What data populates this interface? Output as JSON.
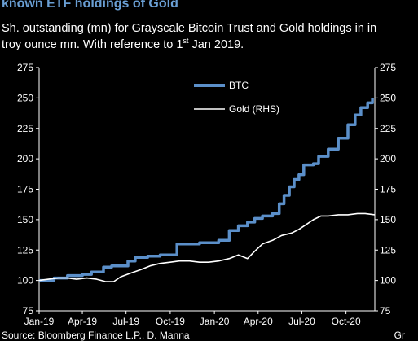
{
  "header": {
    "title": "known ETF holdings of Gold",
    "subtitle_line1": "Sh. outstanding (mn) for Grayscale Bitcoin Trust and Gold holdings in in",
    "subtitle_line2_pre": "troy ounce mn. With reference to 1",
    "subtitle_line2_sup": "st",
    "subtitle_line2_post": " Jan 2019."
  },
  "footer": {
    "source": "Source: Bloomberg Finance L.P., D. Manna",
    "right": "Gr"
  },
  "chart_data": {
    "type": "line",
    "x_ticks": [
      "Jan-19",
      "Apr-19",
      "Jul-19",
      "Oct-19",
      "Jan-20",
      "Apr-20",
      "Jul-20",
      "Oct-20"
    ],
    "x_range": [
      "2019-01-01",
      "2020-11-30"
    ],
    "y_left": {
      "ticks": [
        75,
        100,
        125,
        150,
        175,
        200,
        225,
        250,
        275
      ],
      "range": [
        75,
        275
      ]
    },
    "y_right": {
      "ticks": [
        75,
        100,
        125,
        150,
        175,
        200,
        225,
        250,
        275
      ],
      "range": [
        75,
        275
      ]
    },
    "legend": {
      "position": "top-center"
    },
    "series": [
      {
        "name": "BTC",
        "color": "#5b8fc9",
        "style": "step",
        "points": [
          [
            "2019-01-01",
            100
          ],
          [
            "2019-02-01",
            102
          ],
          [
            "2019-03-01",
            104
          ],
          [
            "2019-04-01",
            105
          ],
          [
            "2019-04-20",
            107
          ],
          [
            "2019-05-15",
            111
          ],
          [
            "2019-06-01",
            112
          ],
          [
            "2019-07-05",
            116
          ],
          [
            "2019-07-20",
            119
          ],
          [
            "2019-08-15",
            120
          ],
          [
            "2019-09-10",
            121
          ],
          [
            "2019-10-15",
            130
          ],
          [
            "2019-12-01",
            131
          ],
          [
            "2020-01-10",
            133
          ],
          [
            "2020-02-01",
            141
          ],
          [
            "2020-02-20",
            145
          ],
          [
            "2020-03-10",
            148
          ],
          [
            "2020-03-25",
            151
          ],
          [
            "2020-04-10",
            153
          ],
          [
            "2020-05-01",
            155
          ],
          [
            "2020-05-15",
            163
          ],
          [
            "2020-05-25",
            170
          ],
          [
            "2020-06-05",
            177
          ],
          [
            "2020-06-15",
            183
          ],
          [
            "2020-06-25",
            187
          ],
          [
            "2020-07-05",
            195
          ],
          [
            "2020-07-25",
            196
          ],
          [
            "2020-08-05",
            202
          ],
          [
            "2020-08-25",
            208
          ],
          [
            "2020-09-15",
            217
          ],
          [
            "2020-10-05",
            228
          ],
          [
            "2020-10-20",
            236
          ],
          [
            "2020-11-01",
            242
          ],
          [
            "2020-11-15",
            246
          ],
          [
            "2020-11-25",
            250
          ]
        ]
      },
      {
        "name": "Gold (RHS)",
        "color": "#ffffff",
        "style": "line",
        "points": [
          [
            "2019-01-01",
            100
          ],
          [
            "2019-01-20",
            101
          ],
          [
            "2019-02-10",
            102
          ],
          [
            "2019-03-01",
            102
          ],
          [
            "2019-03-20",
            101
          ],
          [
            "2019-04-10",
            102
          ],
          [
            "2019-05-01",
            101
          ],
          [
            "2019-05-20",
            99
          ],
          [
            "2019-06-05",
            99
          ],
          [
            "2019-06-20",
            103
          ],
          [
            "2019-07-10",
            106
          ],
          [
            "2019-08-01",
            109
          ],
          [
            "2019-08-20",
            112
          ],
          [
            "2019-09-10",
            114
          ],
          [
            "2019-10-01",
            115
          ],
          [
            "2019-10-20",
            116
          ],
          [
            "2019-11-10",
            116
          ],
          [
            "2019-12-01",
            115
          ],
          [
            "2019-12-20",
            115
          ],
          [
            "2020-01-10",
            116
          ],
          [
            "2020-02-01",
            118
          ],
          [
            "2020-02-20",
            121
          ],
          [
            "2020-03-10",
            118
          ],
          [
            "2020-03-25",
            124
          ],
          [
            "2020-04-10",
            130
          ],
          [
            "2020-05-01",
            133
          ],
          [
            "2020-05-20",
            137
          ],
          [
            "2020-06-10",
            139
          ],
          [
            "2020-06-25",
            142
          ],
          [
            "2020-07-10",
            146
          ],
          [
            "2020-07-25",
            150
          ],
          [
            "2020-08-10",
            153
          ],
          [
            "2020-08-25",
            153
          ],
          [
            "2020-09-15",
            154
          ],
          [
            "2020-10-05",
            154
          ],
          [
            "2020-10-25",
            155
          ],
          [
            "2020-11-10",
            155
          ],
          [
            "2020-11-30",
            154
          ]
        ]
      }
    ]
  }
}
